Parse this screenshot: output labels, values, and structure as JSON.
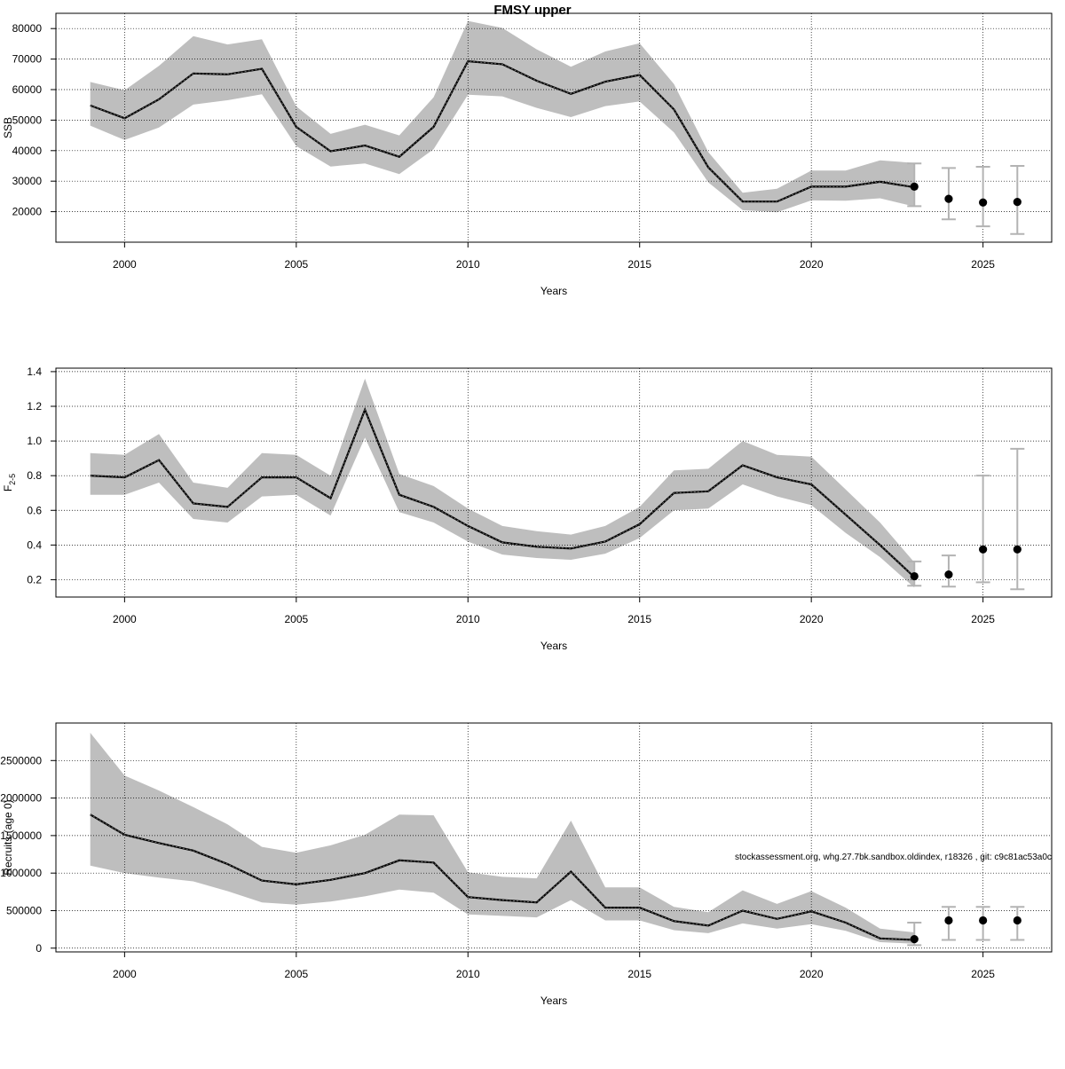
{
  "title": "FMSY upper",
  "footnote": "stockassessment.org, whg.27.7bk.sandbox.oldindex, r18326 , git: c9c81ac53a0c",
  "colors": {
    "band": "#bebebe",
    "line": "#000000",
    "grid": "#000000",
    "errorbar": "#b3b3b3",
    "point": "#000000"
  },
  "chart_data": [
    {
      "type": "line",
      "xlabel": "Years",
      "ylabel": "SSB",
      "ylabel_sub": "",
      "xlim": [
        1998,
        2027
      ],
      "ylim": [
        10000,
        85000
      ],
      "xticks": [
        2000,
        2005,
        2010,
        2015,
        2020,
        2025
      ],
      "yticks": [
        20000,
        30000,
        40000,
        50000,
        60000,
        70000,
        80000
      ],
      "grid": true,
      "years": [
        1999,
        2000,
        2001,
        2002,
        2003,
        2004,
        2005,
        2006,
        2007,
        2008,
        2009,
        2010,
        2011,
        2012,
        2013,
        2014,
        2015,
        2016,
        2017,
        2018,
        2019,
        2020,
        2021,
        2022,
        2023
      ],
      "estimate": [
        54800,
        50600,
        56800,
        65300,
        65000,
        66800,
        47800,
        39800,
        41700,
        38000,
        47800,
        69300,
        68300,
        62900,
        58600,
        62600,
        64800,
        53500,
        34500,
        23300,
        23300,
        28200,
        28200,
        29800,
        28000
      ],
      "lower": [
        48200,
        43500,
        47600,
        55100,
        56500,
        58500,
        41500,
        34800,
        35800,
        32300,
        40500,
        58300,
        57800,
        54000,
        51000,
        54600,
        56100,
        46000,
        29600,
        20500,
        19800,
        23700,
        23600,
        24400,
        21700
      ],
      "upper": [
        62500,
        59800,
        67800,
        77500,
        74800,
        76500,
        54500,
        45500,
        48500,
        45000,
        57500,
        82500,
        80200,
        73200,
        67500,
        72500,
        75200,
        61800,
        39500,
        26200,
        27500,
        33500,
        33500,
        36800,
        36000
      ],
      "forecast": {
        "years": [
          2023,
          2024,
          2025,
          2026
        ],
        "median": [
          28200,
          24200,
          23000,
          23200
        ],
        "low": [
          21800,
          17500,
          15200,
          12700
        ],
        "high": [
          35800,
          34300,
          34700,
          35000
        ]
      }
    },
    {
      "type": "line",
      "xlabel": "Years",
      "ylabel": "F",
      "ylabel_sub": "2-5",
      "xlim": [
        1998,
        2027
      ],
      "ylim": [
        0.1,
        1.42
      ],
      "xticks": [
        2000,
        2005,
        2010,
        2015,
        2020,
        2025
      ],
      "yticks": [
        0.2,
        0.4,
        0.6,
        0.8,
        1.0,
        1.2,
        1.4
      ],
      "ytick_labels": [
        "0.2",
        "0.4",
        "0.6",
        "0.8",
        "1.0",
        "1.2",
        "1.4"
      ],
      "grid": true,
      "years": [
        1999,
        2000,
        2001,
        2002,
        2003,
        2004,
        2005,
        2006,
        2007,
        2008,
        2009,
        2010,
        2011,
        2012,
        2013,
        2014,
        2015,
        2016,
        2017,
        2018,
        2019,
        2020,
        2021,
        2022,
        2023
      ],
      "estimate": [
        0.8,
        0.79,
        0.89,
        0.64,
        0.62,
        0.79,
        0.79,
        0.67,
        1.18,
        0.69,
        0.62,
        0.51,
        0.415,
        0.39,
        0.38,
        0.42,
        0.52,
        0.7,
        0.71,
        0.86,
        0.79,
        0.75,
        0.575,
        0.4,
        0.215
      ],
      "lower": [
        0.69,
        0.69,
        0.76,
        0.55,
        0.53,
        0.68,
        0.69,
        0.57,
        1.02,
        0.59,
        0.53,
        0.42,
        0.345,
        0.325,
        0.315,
        0.35,
        0.44,
        0.6,
        0.61,
        0.75,
        0.68,
        0.63,
        0.47,
        0.33,
        0.155
      ],
      "upper": [
        0.93,
        0.92,
        1.04,
        0.76,
        0.73,
        0.93,
        0.92,
        0.8,
        1.36,
        0.81,
        0.74,
        0.61,
        0.51,
        0.48,
        0.46,
        0.51,
        0.62,
        0.83,
        0.84,
        1.0,
        0.92,
        0.91,
        0.72,
        0.53,
        0.3
      ],
      "forecast": {
        "years": [
          2023,
          2024,
          2025,
          2026
        ],
        "median": [
          0.22,
          0.23,
          0.375,
          0.375
        ],
        "low": [
          0.165,
          0.16,
          0.185,
          0.145
        ],
        "high": [
          0.305,
          0.34,
          0.8,
          0.955
        ]
      }
    },
    {
      "type": "line",
      "xlabel": "Years",
      "ylabel": "Recruits (age 0)",
      "ylabel_sub": "",
      "xlim": [
        1998,
        2027
      ],
      "ylim": [
        -50000,
        3000000
      ],
      "xticks": [
        2000,
        2005,
        2010,
        2015,
        2020,
        2025
      ],
      "yticks": [
        0,
        500000,
        1000000,
        1500000,
        2000000,
        2500000
      ],
      "ytick_labels": [
        "0",
        "500000",
        "1000000",
        "1500000",
        "2000000",
        "2500000"
      ],
      "grid": true,
      "years": [
        1999,
        2000,
        2001,
        2002,
        2003,
        2004,
        2005,
        2006,
        2007,
        2008,
        2009,
        2010,
        2011,
        2012,
        2013,
        2014,
        2015,
        2016,
        2017,
        2018,
        2019,
        2020,
        2021,
        2022,
        2023
      ],
      "estimate": [
        1780000,
        1510000,
        1400000,
        1300000,
        1120000,
        900000,
        850000,
        910000,
        1000000,
        1170000,
        1140000,
        680000,
        640000,
        610000,
        1020000,
        540000,
        540000,
        360000,
        300000,
        500000,
        390000,
        490000,
        340000,
        130000,
        110000
      ],
      "lower": [
        1100000,
        1000000,
        940000,
        890000,
        760000,
        610000,
        580000,
        620000,
        690000,
        780000,
        740000,
        450000,
        430000,
        410000,
        640000,
        370000,
        370000,
        240000,
        200000,
        330000,
        260000,
        320000,
        230000,
        80000,
        60000
      ],
      "upper": [
        2870000,
        2300000,
        2100000,
        1880000,
        1650000,
        1350000,
        1270000,
        1370000,
        1510000,
        1780000,
        1770000,
        1010000,
        950000,
        930000,
        1700000,
        810000,
        810000,
        550000,
        480000,
        770000,
        590000,
        760000,
        540000,
        260000,
        210000
      ],
      "forecast": {
        "years": [
          2023,
          2024,
          2025,
          2026
        ],
        "median": [
          120000,
          370000,
          370000,
          370000
        ],
        "low": [
          40000,
          110000,
          110000,
          110000
        ],
        "high": [
          340000,
          550000,
          550000,
          550000
        ]
      }
    }
  ]
}
